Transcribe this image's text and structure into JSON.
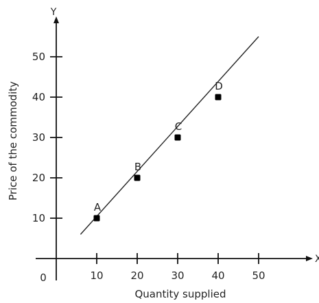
{
  "chart_data": {
    "type": "line",
    "xlabel": "Quantity supplied",
    "ylabel": "Price of the commodity",
    "x_axis_letter": "X",
    "y_axis_letter": "Y",
    "origin_label": "0",
    "xlim": [
      0,
      60
    ],
    "ylim": [
      0,
      60
    ],
    "x_ticks": [
      10,
      20,
      30,
      40,
      50
    ],
    "y_ticks": [
      10,
      20,
      30,
      40,
      50
    ],
    "line": {
      "x_start": 6,
      "y_start": 6,
      "x_end": 50,
      "y_end": 55
    },
    "points": [
      {
        "label": "A",
        "x": 10,
        "y": 10
      },
      {
        "label": "B",
        "x": 20,
        "y": 20
      },
      {
        "label": "C",
        "x": 30,
        "y": 30
      },
      {
        "label": "D",
        "x": 40,
        "y": 40
      }
    ],
    "grid": false,
    "legend": "none"
  }
}
